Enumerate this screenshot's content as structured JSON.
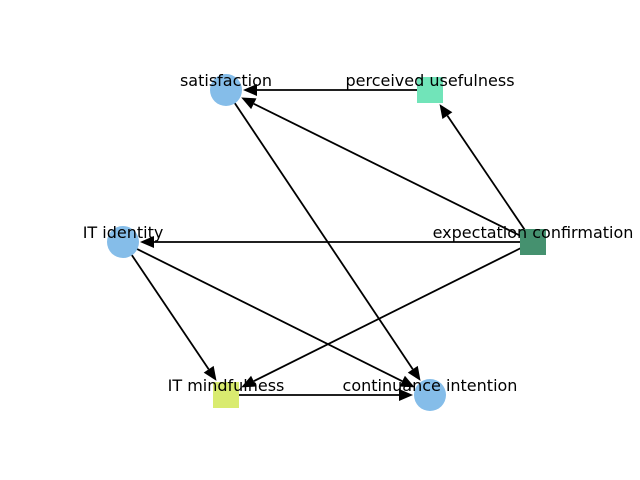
{
  "diagram": {
    "type": "directed-graph",
    "edge_color": "#000000",
    "nodes": [
      {
        "id": "satisfaction",
        "label": "satisfaction",
        "shape": "circle",
        "color": "#85bde9"
      },
      {
        "id": "perceived_usefulness",
        "label": "perceived usefulness",
        "shape": "square",
        "color": "#71e4b9"
      },
      {
        "id": "it_identity",
        "label": "IT identity",
        "shape": "circle",
        "color": "#85bde9"
      },
      {
        "id": "expectation_confirmation",
        "label": "expectation confirmation",
        "shape": "square",
        "color": "#45916f"
      },
      {
        "id": "it_mindfulness",
        "label": "IT mindfulness",
        "shape": "square",
        "color": "#d9eb6f"
      },
      {
        "id": "continuance_intention",
        "label": "continuance intention",
        "shape": "circle",
        "color": "#85bde9"
      }
    ],
    "edges": [
      {
        "from": "perceived_usefulness",
        "to": "satisfaction"
      },
      {
        "from": "expectation_confirmation",
        "to": "perceived_usefulness"
      },
      {
        "from": "expectation_confirmation",
        "to": "satisfaction"
      },
      {
        "from": "expectation_confirmation",
        "to": "it_identity"
      },
      {
        "from": "expectation_confirmation",
        "to": "it_mindfulness"
      },
      {
        "from": "satisfaction",
        "to": "continuance_intention"
      },
      {
        "from": "it_identity",
        "to": "it_mindfulness"
      },
      {
        "from": "it_identity",
        "to": "continuance_intention"
      },
      {
        "from": "it_mindfulness",
        "to": "continuance_intention"
      }
    ]
  }
}
